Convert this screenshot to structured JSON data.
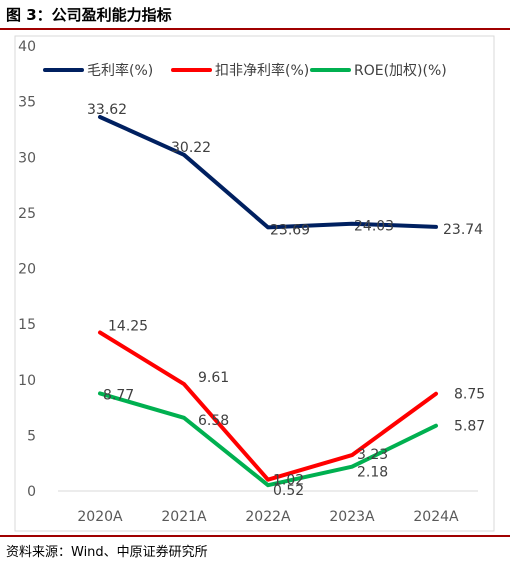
{
  "figure": {
    "title": "图 3：公司盈利能力指标",
    "source": "资料来源：Wind、中原证券研究所"
  },
  "chart_data": {
    "type": "line",
    "x": [
      "2020A",
      "2021A",
      "2022A",
      "2023A",
      "2024A"
    ],
    "ylim": [
      0,
      40
    ],
    "yticks": [
      0,
      5,
      10,
      15,
      20,
      25,
      30,
      35,
      40
    ],
    "grid": false,
    "legend_position": "top",
    "series": [
      {
        "name": "毛利率(%)",
        "color": "#002060",
        "values": [
          33.62,
          30.22,
          23.69,
          24.03,
          23.74
        ]
      },
      {
        "name": "扣非净利率(%)",
        "color": "#ff0000",
        "values": [
          14.25,
          9.61,
          1.02,
          3.23,
          8.75
        ]
      },
      {
        "name": "ROE(加权)(%)",
        "color": "#00b050",
        "values": [
          8.77,
          6.58,
          0.52,
          2.18,
          5.87
        ]
      }
    ]
  }
}
